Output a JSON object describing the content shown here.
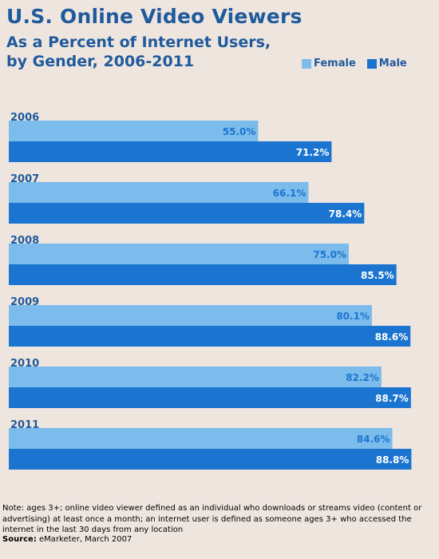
{
  "header": {
    "title": "U.S. Online Video Viewers",
    "subtitle": "As a Percent of Internet Users, by Gender, 2006-2011"
  },
  "legend": {
    "female_label": "Female",
    "male_label": "Male"
  },
  "colors": {
    "female": "#7bbcec",
    "male": "#1b74cf",
    "female_text": "#1b74cf",
    "male_text": "#ffffff",
    "title": "#1f5a9c",
    "background": "#efe5df"
  },
  "chart_data": {
    "type": "bar",
    "orientation": "horizontal",
    "categories": [
      "2006",
      "2007",
      "2008",
      "2009",
      "2010",
      "2011"
    ],
    "series": [
      {
        "name": "Female",
        "values": [
          55.0,
          66.1,
          75.0,
          80.1,
          82.2,
          84.6
        ],
        "labels": [
          "55.0%",
          "66.1%",
          "75.0%",
          "80.1%",
          "82.2%",
          "84.6%"
        ]
      },
      {
        "name": "Male",
        "values": [
          71.2,
          78.4,
          85.5,
          88.6,
          88.7,
          88.8
        ],
        "labels": [
          "71.2%",
          "78.4%",
          "85.5%",
          "88.6%",
          "88.7%",
          "88.8%"
        ]
      }
    ],
    "xlim": [
      0,
      100
    ],
    "legend_position": "top-right",
    "grid": false
  },
  "footer": {
    "note": "Note: ages 3+; online video viewer defined as an individual who downloads or streams video (content or advertising) at least once a month; an internet user is defined as someone ages 3+ who accessed the internet in the last 30 days from any location",
    "source_label": "Source:",
    "source_text": "eMarketer, March 2007"
  }
}
